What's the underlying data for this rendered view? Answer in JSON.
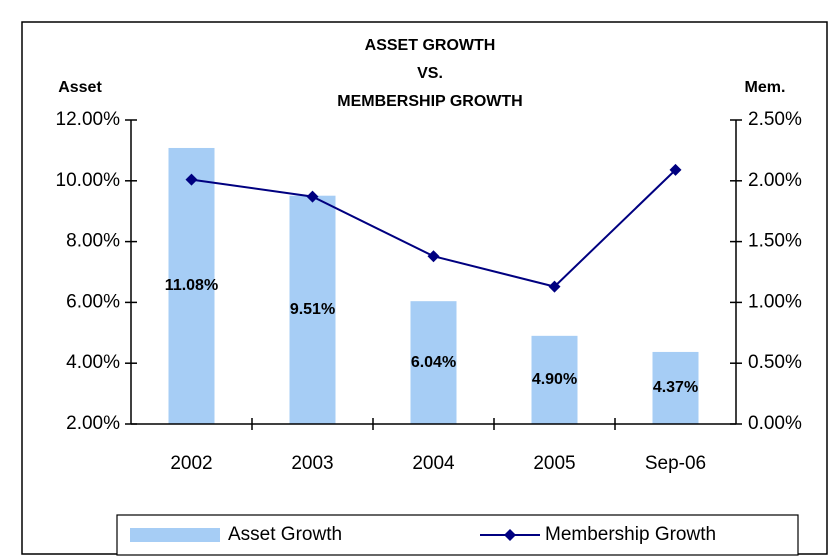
{
  "chart_data": {
    "type": "bar",
    "title": [
      "ASSET GROWTH",
      "VS.",
      "MEMBERSHIP GROWTH"
    ],
    "y_label": "Asset",
    "y2_label": "Mem.",
    "categories": [
      "2002",
      "2003",
      "2004",
      "2005",
      "Sep-06"
    ],
    "series": [
      {
        "name": "Asset Growth",
        "type": "bar",
        "color": "#a6cdf5",
        "values": [
          11.08,
          9.51,
          6.04,
          4.9,
          4.37
        ],
        "value_labels": [
          "11.08%",
          "9.51%",
          "6.04%",
          "4.90%",
          "4.37%"
        ]
      },
      {
        "name": "Membership Growth",
        "type": "line",
        "axis": "y2",
        "color": "#000080",
        "values": [
          2.01,
          1.87,
          1.38,
          1.13,
          2.09
        ]
      }
    ],
    "ylim": [
      2,
      12
    ],
    "yticks": [
      {
        "value": 2,
        "label": "2.00%"
      },
      {
        "value": 4,
        "label": "4.00%"
      },
      {
        "value": 6,
        "label": "6.00%"
      },
      {
        "value": 8,
        "label": "8.00%"
      },
      {
        "value": 10,
        "label": "10.00%"
      },
      {
        "value": 12,
        "label": "12.00%"
      }
    ],
    "y2lim": [
      0,
      2.5
    ],
    "y2ticks": [
      {
        "value": 0,
        "label": "0.00%"
      },
      {
        "value": 0.5,
        "label": "0.50%"
      },
      {
        "value": 1,
        "label": "1.00%"
      },
      {
        "value": 1.5,
        "label": "1.50%"
      },
      {
        "value": 2,
        "label": "2.00%"
      },
      {
        "value": 2.5,
        "label": "2.50%"
      }
    ],
    "legend": "bottom"
  }
}
